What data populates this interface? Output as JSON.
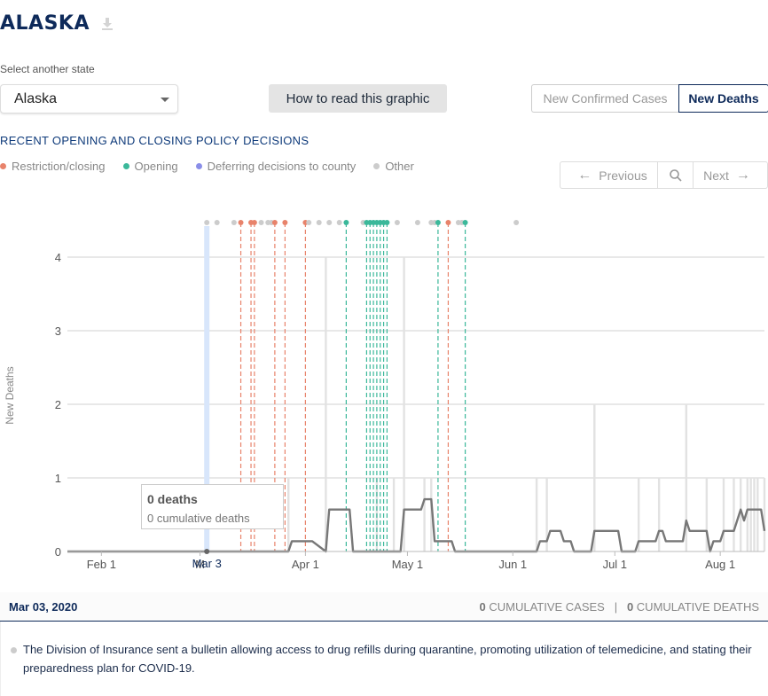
{
  "header": {
    "title": "ALASKA",
    "download_icon": "download-icon"
  },
  "state_select": {
    "label": "Select another state",
    "value": "Alaska"
  },
  "how_to_read_label": "How to read this graphic",
  "toggle": {
    "cases_label": "New Confirmed Cases",
    "deaths_label": "New Deaths",
    "selected": "New Deaths"
  },
  "section_title": "RECENT OPENING AND CLOSING POLICY DECISIONS",
  "legend": [
    {
      "label": "Restriction/closing",
      "color": "#e8836b"
    },
    {
      "label": "Opening",
      "color": "#3bb89a"
    },
    {
      "label": "Deferring decisions to county",
      "color": "#8a8ee8"
    },
    {
      "label": "Other",
      "color": "#cccccc"
    }
  ],
  "nav": {
    "previous_label": "Previous",
    "next_label": "Next"
  },
  "tooltip": {
    "line1": "0 deaths",
    "line2": "0 cumulative deaths"
  },
  "info": {
    "date": "Mar 03, 2020",
    "cases_value": "0",
    "cases_label": "CUMULATIVE CASES",
    "deaths_value": "0",
    "deaths_label": "CUMULATIVE DEATHS"
  },
  "policy_text": "The Division of Insurance sent a bulletin allowing access to drug refills during quarantine, promoting utilization of telemedicine, and stating their preparedness plan for COVID-19.",
  "chart_data": {
    "type": "bar",
    "ylabel": "New Deaths",
    "y_ticks": [
      0,
      1,
      2,
      3,
      4
    ],
    "ylim": [
      0,
      4.5
    ],
    "x_range": [
      "2020-01-22",
      "2020-08-14"
    ],
    "x_ticks": [
      {
        "date": "2020-02-01",
        "label": "Feb 1"
      },
      {
        "date": "2020-03-01",
        "label": "M"
      },
      {
        "date": "2020-04-01",
        "label": "Apr 1"
      },
      {
        "date": "2020-05-01",
        "label": "May 1"
      },
      {
        "date": "2020-06-01",
        "label": "Jun 1"
      },
      {
        "date": "2020-07-01",
        "label": "Jul 1"
      },
      {
        "date": "2020-08-01",
        "label": "Aug 1"
      }
    ],
    "selected_date": {
      "date": "2020-03-03",
      "label": "Mar 3"
    },
    "daily_deaths": [
      {
        "date": "2020-03-27",
        "value": 1
      },
      {
        "date": "2020-04-07",
        "value": 4
      },
      {
        "date": "2020-04-22",
        "value": 1
      },
      {
        "date": "2020-04-27",
        "value": 1
      },
      {
        "date": "2020-04-30",
        "value": 4
      },
      {
        "date": "2020-05-06",
        "value": 1
      },
      {
        "date": "2020-05-08",
        "value": 1
      },
      {
        "date": "2020-06-08",
        "value": 1
      },
      {
        "date": "2020-06-11",
        "value": 1
      },
      {
        "date": "2020-06-25",
        "value": 2
      },
      {
        "date": "2020-07-08",
        "value": 1
      },
      {
        "date": "2020-07-14",
        "value": 1
      },
      {
        "date": "2020-07-22",
        "value": 2
      },
      {
        "date": "2020-07-28",
        "value": 1
      },
      {
        "date": "2020-08-02",
        "value": 1
      },
      {
        "date": "2020-08-05",
        "value": 1
      },
      {
        "date": "2020-08-07",
        "value": 1
      },
      {
        "date": "2020-08-09",
        "value": 1
      },
      {
        "date": "2020-08-10",
        "value": 1
      },
      {
        "date": "2020-08-11",
        "value": 1
      },
      {
        "date": "2020-08-12",
        "value": 1
      },
      {
        "date": "2020-08-14",
        "value": 1
      }
    ],
    "rolling_average": [
      {
        "date": "2020-01-22",
        "value": 0
      },
      {
        "date": "2020-03-27",
        "value": 0
      },
      {
        "date": "2020-03-28",
        "value": 0.14
      },
      {
        "date": "2020-04-03",
        "value": 0.14
      },
      {
        "date": "2020-04-07",
        "value": 0
      },
      {
        "date": "2020-04-08",
        "value": 0.57
      },
      {
        "date": "2020-04-14",
        "value": 0.57
      },
      {
        "date": "2020-04-15",
        "value": 0
      },
      {
        "date": "2020-04-29",
        "value": 0
      },
      {
        "date": "2020-04-30",
        "value": 0.57
      },
      {
        "date": "2020-05-05",
        "value": 0.57
      },
      {
        "date": "2020-05-06",
        "value": 0.71
      },
      {
        "date": "2020-05-08",
        "value": 0.71
      },
      {
        "date": "2020-05-09",
        "value": 0.14
      },
      {
        "date": "2020-05-14",
        "value": 0.14
      },
      {
        "date": "2020-05-15",
        "value": 0
      },
      {
        "date": "2020-06-08",
        "value": 0
      },
      {
        "date": "2020-06-09",
        "value": 0.14
      },
      {
        "date": "2020-06-11",
        "value": 0.14
      },
      {
        "date": "2020-06-12",
        "value": 0.28
      },
      {
        "date": "2020-06-15",
        "value": 0.28
      },
      {
        "date": "2020-06-16",
        "value": 0.14
      },
      {
        "date": "2020-06-18",
        "value": 0.14
      },
      {
        "date": "2020-06-19",
        "value": 0
      },
      {
        "date": "2020-06-24",
        "value": 0
      },
      {
        "date": "2020-06-25",
        "value": 0.28
      },
      {
        "date": "2020-07-02",
        "value": 0.28
      },
      {
        "date": "2020-07-03",
        "value": 0
      },
      {
        "date": "2020-07-07",
        "value": 0
      },
      {
        "date": "2020-07-08",
        "value": 0.14
      },
      {
        "date": "2020-07-13",
        "value": 0.14
      },
      {
        "date": "2020-07-14",
        "value": 0.28
      },
      {
        "date": "2020-07-15",
        "value": 0.28
      },
      {
        "date": "2020-07-16",
        "value": 0.14
      },
      {
        "date": "2020-07-21",
        "value": 0.14
      },
      {
        "date": "2020-07-22",
        "value": 0.42
      },
      {
        "date": "2020-07-23",
        "value": 0.28
      },
      {
        "date": "2020-07-28",
        "value": 0.28
      },
      {
        "date": "2020-07-29",
        "value": 0
      },
      {
        "date": "2020-07-30",
        "value": 0.14
      },
      {
        "date": "2020-08-01",
        "value": 0.14
      },
      {
        "date": "2020-08-02",
        "value": 0.28
      },
      {
        "date": "2020-08-05",
        "value": 0.28
      },
      {
        "date": "2020-08-07",
        "value": 0.57
      },
      {
        "date": "2020-08-08",
        "value": 0.42
      },
      {
        "date": "2020-08-09",
        "value": 0.57
      },
      {
        "date": "2020-08-13",
        "value": 0.57
      },
      {
        "date": "2020-08-14",
        "value": 0.28
      }
    ],
    "policy_events": [
      {
        "date": "2020-03-03",
        "type": "Other",
        "line": false
      },
      {
        "date": "2020-03-06",
        "type": "Other",
        "line": false
      },
      {
        "date": "2020-03-11",
        "type": "Other",
        "line": false
      },
      {
        "date": "2020-03-13",
        "type": "Restriction/closing",
        "line": true
      },
      {
        "date": "2020-03-16",
        "type": "Restriction/closing",
        "line": true
      },
      {
        "date": "2020-03-17",
        "type": "Restriction/closing",
        "line": true
      },
      {
        "date": "2020-03-19",
        "type": "Other",
        "line": false
      },
      {
        "date": "2020-03-21",
        "type": "Other",
        "line": false
      },
      {
        "date": "2020-03-22",
        "type": "Other",
        "line": false
      },
      {
        "date": "2020-03-23",
        "type": "Restriction/closing",
        "line": true
      },
      {
        "date": "2020-03-26",
        "type": "Restriction/closing",
        "line": true
      },
      {
        "date": "2020-04-01",
        "type": "Restriction/closing",
        "line": true
      },
      {
        "date": "2020-04-02",
        "type": "Other",
        "line": false
      },
      {
        "date": "2020-04-05",
        "type": "Other",
        "line": false
      },
      {
        "date": "2020-04-08",
        "type": "Other",
        "line": false
      },
      {
        "date": "2020-04-11",
        "type": "Other",
        "line": false
      },
      {
        "date": "2020-04-13",
        "type": "Opening",
        "line": true
      },
      {
        "date": "2020-04-18",
        "type": "Other",
        "line": false
      },
      {
        "date": "2020-04-19",
        "type": "Opening",
        "line": true
      },
      {
        "date": "2020-04-20",
        "type": "Opening",
        "line": true
      },
      {
        "date": "2020-04-21",
        "type": "Opening",
        "line": true
      },
      {
        "date": "2020-04-22",
        "type": "Opening",
        "line": true
      },
      {
        "date": "2020-04-23",
        "type": "Opening",
        "line": true
      },
      {
        "date": "2020-04-24",
        "type": "Opening",
        "line": true
      },
      {
        "date": "2020-04-25",
        "type": "Opening",
        "line": true
      },
      {
        "date": "2020-04-28",
        "type": "Other",
        "line": false
      },
      {
        "date": "2020-05-04",
        "type": "Other",
        "line": false
      },
      {
        "date": "2020-05-08",
        "type": "Other",
        "line": false
      },
      {
        "date": "2020-05-09",
        "type": "Other",
        "line": false
      },
      {
        "date": "2020-05-10",
        "type": "Opening",
        "line": true
      },
      {
        "date": "2020-05-13",
        "type": "Restriction/closing",
        "line": true
      },
      {
        "date": "2020-05-16",
        "type": "Other",
        "line": false
      },
      {
        "date": "2020-05-17",
        "type": "Other",
        "line": false
      },
      {
        "date": "2020-05-18",
        "type": "Opening",
        "line": true
      },
      {
        "date": "2020-06-02",
        "type": "Other",
        "line": false
      }
    ]
  }
}
